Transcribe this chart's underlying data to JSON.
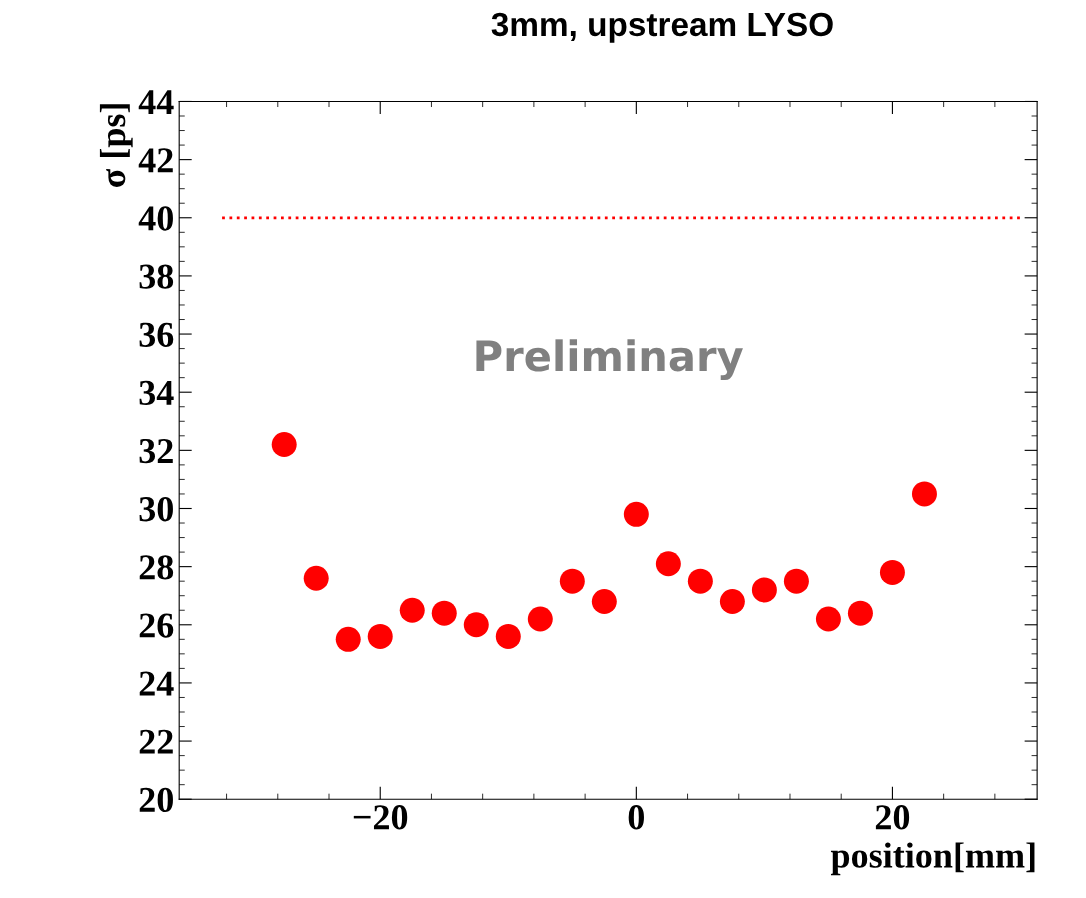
{
  "chart_data": {
    "type": "scatter",
    "title": "3mm, upstream LYSO",
    "xlabel": "position[mm]",
    "ylabel": "σ [ps]",
    "x": [
      -27.5,
      -25,
      -22.5,
      -20,
      -17.5,
      -15,
      -12.5,
      -10,
      -7.5,
      -5,
      -2.5,
      0,
      2.5,
      5,
      7.5,
      10,
      12.5,
      15,
      17.5,
      20,
      22.5
    ],
    "series": [
      {
        "color": "#ff0000",
        "values": [
          32.2,
          27.6,
          25.5,
          25.6,
          26.5,
          26.4,
          26.0,
          25.6,
          26.2,
          27.5,
          26.8,
          29.8,
          28.1,
          27.5,
          26.8,
          27.2,
          27.5,
          26.2,
          26.4,
          27.8,
          30.5
        ]
      }
    ],
    "xlim": [
      -35.7,
      31.3
    ],
    "xticks": [
      {
        "value": -20,
        "label": "−20"
      },
      0,
      20
    ],
    "ylim": [
      20,
      44
    ],
    "yticks": [
      20,
      22,
      24,
      26,
      28,
      30,
      32,
      34,
      36,
      38,
      40,
      42,
      44
    ],
    "ref_lines": [
      {
        "axis": "y",
        "value": 40,
        "color": "#ff0000",
        "line_style": "dotted"
      }
    ],
    "annotations": [
      "Preliminary"
    ],
    "marker": "circle",
    "grid": false,
    "legend": false
  }
}
